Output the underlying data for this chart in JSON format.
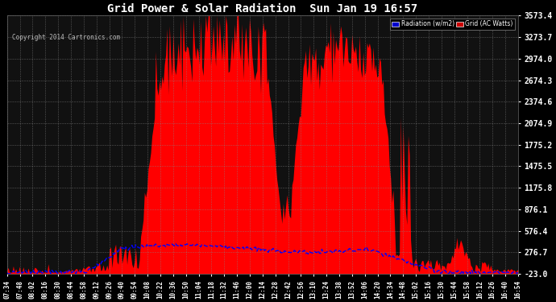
{
  "title": "Grid Power & Solar Radiation  Sun Jan 19 16:57",
  "copyright": "Copyright 2014 Cartronics.com",
  "yticks": [
    -23.0,
    276.7,
    576.4,
    876.1,
    1175.8,
    1475.5,
    1775.2,
    2074.9,
    2374.6,
    2674.3,
    2974.0,
    3273.7,
    3573.4
  ],
  "ylim": [
    -23.0,
    3573.4
  ],
  "background_color": "#000000",
  "plot_bg_color": "#111111",
  "grid_color": "#888888",
  "title_color": "#ffffff",
  "tick_color": "#ffffff",
  "radiation_color": "#0000ff",
  "grid_power_color": "#ff0000",
  "xtick_labels": [
    "07:34",
    "07:48",
    "08:02",
    "08:16",
    "08:30",
    "08:44",
    "08:58",
    "09:12",
    "09:26",
    "09:40",
    "09:54",
    "10:08",
    "10:22",
    "10:36",
    "10:50",
    "11:04",
    "11:18",
    "11:32",
    "11:46",
    "12:00",
    "12:14",
    "12:28",
    "12:42",
    "12:56",
    "13:10",
    "13:24",
    "13:38",
    "13:52",
    "14:06",
    "14:20",
    "14:34",
    "14:48",
    "15:02",
    "15:16",
    "15:30",
    "15:44",
    "15:58",
    "16:12",
    "16:26",
    "16:40",
    "16:54"
  ],
  "n_points": 410
}
